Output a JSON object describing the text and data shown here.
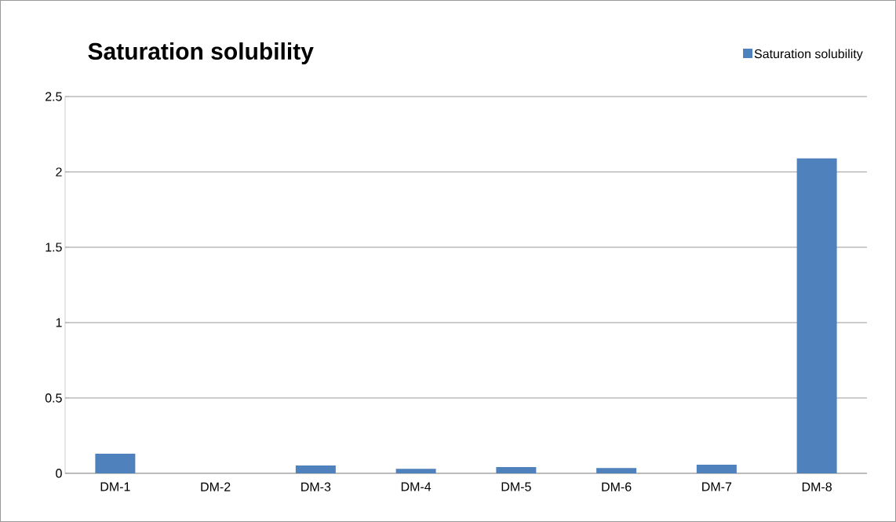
{
  "chart_data": {
    "type": "bar",
    "title": "Saturation solubility",
    "categories": [
      "DM-1",
      "DM-2",
      "DM-3",
      "DM-4",
      "DM-5",
      "DM-6",
      "DM-7",
      "DM-8"
    ],
    "series": [
      {
        "name": "Saturation solubility",
        "color": "#4f81bd",
        "values": [
          0.13,
          0,
          0.052,
          0.03,
          0.042,
          0.035,
          0.057,
          2.09
        ]
      }
    ],
    "ylim": [
      0,
      2.5
    ],
    "yticks": [
      0,
      0.5,
      1,
      1.5,
      2,
      2.5
    ],
    "grid": "y",
    "legend": "top right"
  }
}
